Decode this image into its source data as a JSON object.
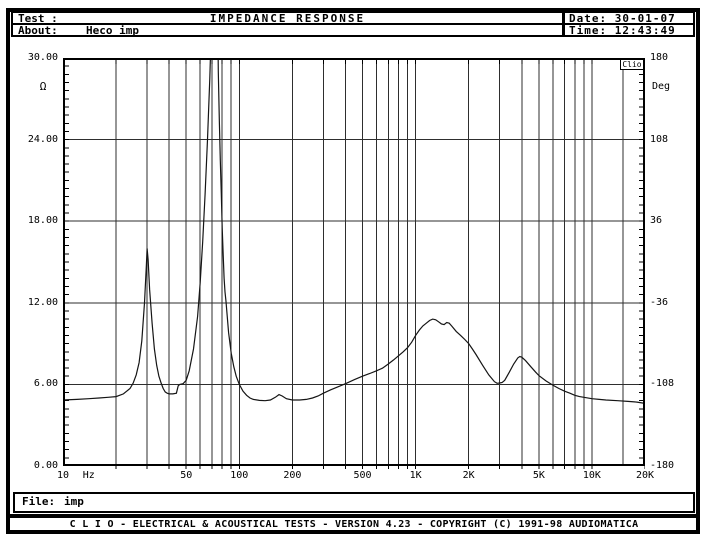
{
  "header": {
    "test_label": "Test :",
    "title": "IMPEDANCE RESPONSE",
    "date": "Date: 30-01-07",
    "about_label": "About:",
    "about_value": "Heco imp",
    "time": "Time: 12:43:49"
  },
  "file_bar": {
    "label": "File:",
    "value": "imp"
  },
  "footer": {
    "credits": "C L I O  -  ELECTRICAL & ACOUSTICAL TESTS  -  VERSION 4.23  -  COPYRIGHT (C) 1991-98 AUDIOMATICA"
  },
  "colors": {
    "foreground": "#000000",
    "background": "#ffffff",
    "grid": "#2e2e2e",
    "curve": "#151515"
  },
  "chart_data": {
    "type": "line",
    "title": "IMPEDANCE RESPONSE",
    "watermark": "Clio",
    "grid": "on",
    "x_axis": {
      "unit": "Hz",
      "scale": "log",
      "min": 10,
      "max": 20000,
      "ticks": [
        {
          "value": 10,
          "label": "10"
        },
        {
          "value": 50,
          "label": "50"
        },
        {
          "value": 100,
          "label": "100"
        },
        {
          "value": 200,
          "label": "200"
        },
        {
          "value": 500,
          "label": "500"
        },
        {
          "value": 1000,
          "label": "1K"
        },
        {
          "value": 2000,
          "label": "2K"
        },
        {
          "value": 5000,
          "label": "5K"
        },
        {
          "value": 10000,
          "label": "10K"
        },
        {
          "value": 20000,
          "label": "20K"
        }
      ],
      "gridlines": [
        20,
        30,
        40,
        50,
        60,
        70,
        80,
        90,
        100,
        200,
        300,
        400,
        500,
        600,
        700,
        800,
        900,
        1000,
        2000,
        3000,
        4000,
        5000,
        6000,
        7000,
        8000,
        9000,
        10000,
        20000
      ],
      "cursor_line_hz": 15000
    },
    "y_left": {
      "unit": "Ω",
      "min": 0,
      "max": 30,
      "ticks": [
        {
          "value": 30,
          "label": "30.00"
        },
        {
          "value": 24,
          "label": "24.00"
        },
        {
          "value": 18,
          "label": "18.00"
        },
        {
          "value": 12,
          "label": "12.00"
        },
        {
          "value": 6,
          "label": "6.00"
        },
        {
          "value": 0,
          "label": "0.00"
        }
      ],
      "gridlines": [
        6,
        12,
        18,
        24
      ]
    },
    "y_right": {
      "unit": "Deg",
      "min": -180,
      "max": 180,
      "ticks": [
        {
          "value": 180,
          "label": "180"
        },
        {
          "value": 108,
          "label": "108"
        },
        {
          "value": 36,
          "label": "36"
        },
        {
          "value": -36,
          "label": "-36"
        },
        {
          "value": -108,
          "label": "-108"
        },
        {
          "value": -180,
          "label": "-180"
        }
      ]
    },
    "series": [
      {
        "name": "impedance_magnitude_ohm",
        "clipped_above": 30,
        "points": [
          [
            10,
            4.85
          ],
          [
            12,
            4.9
          ],
          [
            14,
            4.95
          ],
          [
            16,
            5.0
          ],
          [
            18,
            5.05
          ],
          [
            20,
            5.1
          ],
          [
            22,
            5.3
          ],
          [
            24,
            5.7
          ],
          [
            25,
            6.1
          ],
          [
            26,
            6.7
          ],
          [
            27,
            7.6
          ],
          [
            28,
            9.2
          ],
          [
            29,
            12.0
          ],
          [
            29.7,
            14.8
          ],
          [
            30,
            16.0
          ],
          [
            30.4,
            15.2
          ],
          [
            31,
            13.0
          ],
          [
            32,
            10.5
          ],
          [
            33,
            8.6
          ],
          [
            34,
            7.4
          ],
          [
            35,
            6.6
          ],
          [
            36,
            6.1
          ],
          [
            37,
            5.7
          ],
          [
            38,
            5.45
          ],
          [
            39,
            5.35
          ],
          [
            40,
            5.3
          ],
          [
            42,
            5.3
          ],
          [
            44,
            5.35
          ],
          [
            45,
            5.9
          ],
          [
            46,
            6.0
          ],
          [
            48,
            6.05
          ],
          [
            50,
            6.3
          ],
          [
            52,
            7.0
          ],
          [
            55,
            8.6
          ],
          [
            58,
            11.0
          ],
          [
            60,
            13.5
          ],
          [
            62,
            16.5
          ],
          [
            64,
            20.0
          ],
          [
            66,
            24.0
          ],
          [
            68,
            28.5
          ],
          [
            70,
            34
          ],
          [
            72,
            55
          ],
          [
            74,
            55
          ],
          [
            75,
            36
          ],
          [
            76,
            29
          ],
          [
            77,
            25.5
          ],
          [
            78,
            22.5
          ],
          [
            79,
            20
          ],
          [
            80,
            17.5
          ],
          [
            81,
            15.5
          ],
          [
            82,
            13.8
          ],
          [
            83,
            12.8
          ],
          [
            84,
            12.1
          ],
          [
            85,
            11.3
          ],
          [
            87,
            9.8
          ],
          [
            90,
            8.3
          ],
          [
            93,
            7.3
          ],
          [
            96,
            6.6
          ],
          [
            100,
            6.0
          ],
          [
            105,
            5.5
          ],
          [
            110,
            5.2
          ],
          [
            115,
            5.0
          ],
          [
            120,
            4.9
          ],
          [
            130,
            4.82
          ],
          [
            140,
            4.8
          ],
          [
            150,
            4.85
          ],
          [
            160,
            5.05
          ],
          [
            168,
            5.25
          ],
          [
            175,
            5.15
          ],
          [
            185,
            4.95
          ],
          [
            200,
            4.85
          ],
          [
            220,
            4.85
          ],
          [
            240,
            4.9
          ],
          [
            260,
            5.0
          ],
          [
            280,
            5.15
          ],
          [
            300,
            5.35
          ],
          [
            330,
            5.6
          ],
          [
            360,
            5.8
          ],
          [
            400,
            6.05
          ],
          [
            450,
            6.35
          ],
          [
            500,
            6.6
          ],
          [
            550,
            6.8
          ],
          [
            600,
            7.0
          ],
          [
            650,
            7.2
          ],
          [
            700,
            7.5
          ],
          [
            750,
            7.8
          ],
          [
            800,
            8.1
          ],
          [
            850,
            8.4
          ],
          [
            900,
            8.7
          ],
          [
            950,
            9.1
          ],
          [
            1000,
            9.6
          ],
          [
            1050,
            10.0
          ],
          [
            1100,
            10.3
          ],
          [
            1150,
            10.5
          ],
          [
            1200,
            10.7
          ],
          [
            1250,
            10.8
          ],
          [
            1300,
            10.75
          ],
          [
            1350,
            10.6
          ],
          [
            1400,
            10.45
          ],
          [
            1450,
            10.4
          ],
          [
            1500,
            10.55
          ],
          [
            1550,
            10.5
          ],
          [
            1600,
            10.3
          ],
          [
            1700,
            9.9
          ],
          [
            1800,
            9.6
          ],
          [
            1900,
            9.3
          ],
          [
            2000,
            9.0
          ],
          [
            2100,
            8.6
          ],
          [
            2200,
            8.2
          ],
          [
            2400,
            7.4
          ],
          [
            2600,
            6.7
          ],
          [
            2800,
            6.2
          ],
          [
            2900,
            6.08
          ],
          [
            3000,
            6.1
          ],
          [
            3100,
            6.15
          ],
          [
            3200,
            6.3
          ],
          [
            3400,
            6.9
          ],
          [
            3600,
            7.5
          ],
          [
            3800,
            7.95
          ],
          [
            3900,
            8.05
          ],
          [
            4000,
            8.0
          ],
          [
            4200,
            7.75
          ],
          [
            4500,
            7.3
          ],
          [
            4800,
            6.9
          ],
          [
            5000,
            6.65
          ],
          [
            5500,
            6.25
          ],
          [
            6000,
            5.95
          ],
          [
            6500,
            5.7
          ],
          [
            7000,
            5.5
          ],
          [
            7500,
            5.35
          ],
          [
            8000,
            5.2
          ],
          [
            8500,
            5.1
          ],
          [
            9000,
            5.05
          ],
          [
            10000,
            4.95
          ],
          [
            11000,
            4.9
          ],
          [
            12000,
            4.85
          ],
          [
            14000,
            4.8
          ],
          [
            16000,
            4.75
          ],
          [
            18000,
            4.7
          ],
          [
            20000,
            4.6
          ]
        ]
      }
    ]
  }
}
